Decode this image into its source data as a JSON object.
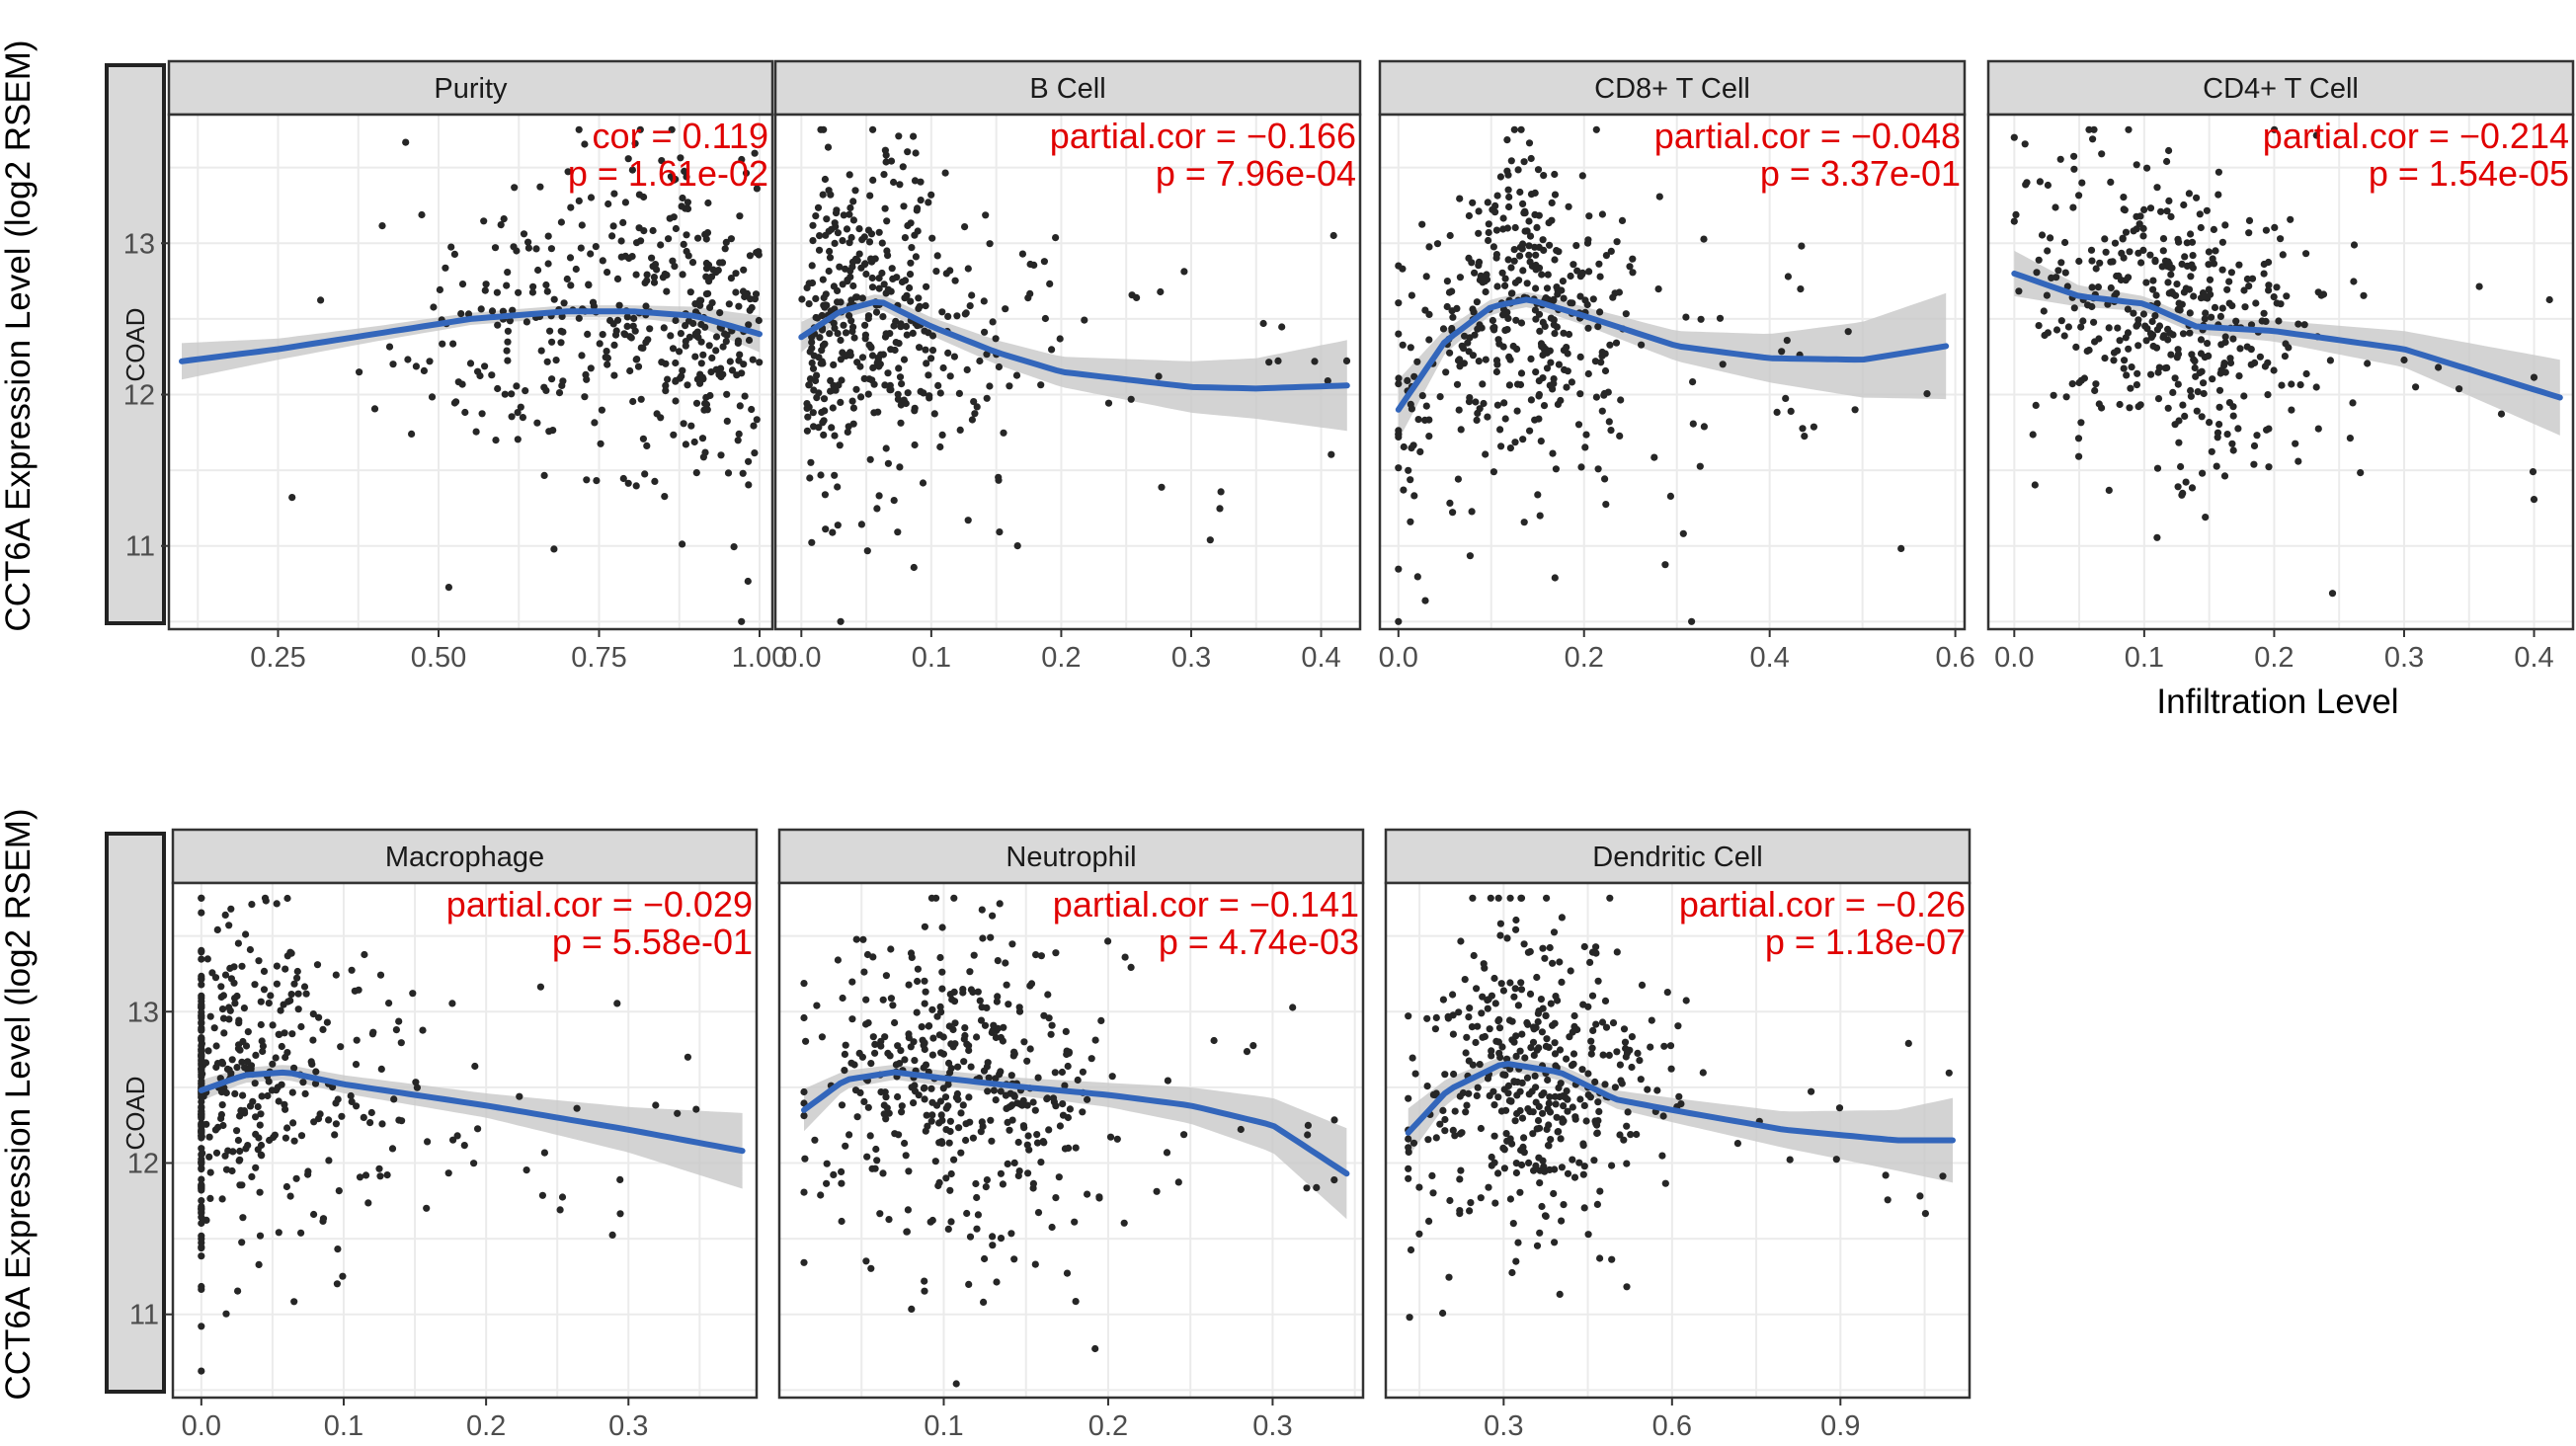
{
  "figure": {
    "y_axis_title": "CCT6A Expression Level (log2 RSEM)",
    "x_axis_title": "Infiltration Level",
    "row_label": "COAD"
  },
  "colors": {
    "points": "#262626",
    "fit_line": "#3366bb",
    "ci_band": "#c8c8c8",
    "annotation": "#e00000",
    "strip_fill": "#d9d9d9",
    "grid": "#ebebeb"
  },
  "chart_data": [
    {
      "type": "scatter",
      "title": "Purity",
      "xlabel": "Infiltration Level",
      "ylabel": "CCT6A Expression Level (log2 RSEM)",
      "xlim": [
        0.08,
        1.02
      ],
      "ylim": [
        10.45,
        13.85
      ],
      "xticks": [
        0.25,
        0.5,
        0.75,
        1.0
      ],
      "xtick_labels": [
        "0.25",
        "0.50",
        "0.75",
        "1.00"
      ],
      "yticks": [
        11,
        12,
        13
      ],
      "ytick_labels": [
        "11",
        "12",
        "13"
      ],
      "annotation": [
        "cor = 0.119",
        "p = 1.61e-02"
      ],
      "fit": {
        "x": [
          0.1,
          0.25,
          0.4,
          0.55,
          0.7,
          0.8,
          0.9,
          1.0
        ],
        "y": [
          12.22,
          12.3,
          12.4,
          12.5,
          12.55,
          12.55,
          12.52,
          12.4
        ]
      },
      "ci_halfwidth": [
        0.12,
        0.07,
        0.05,
        0.04,
        0.04,
        0.04,
        0.06,
        0.12
      ],
      "points_gen": {
        "n": 430,
        "seed": 11,
        "x_dist": "beta_right",
        "x_range": [
          0.08,
          1.0
        ],
        "y_sd": 0.52
      }
    },
    {
      "type": "scatter",
      "title": "B Cell",
      "xlabel": "Infiltration Level",
      "ylabel": "CCT6A Expression Level (log2 RSEM)",
      "xlim": [
        -0.02,
        0.43
      ],
      "ylim": [
        10.45,
        13.85
      ],
      "xticks": [
        0.0,
        0.1,
        0.2,
        0.3,
        0.4
      ],
      "xtick_labels": [
        "0.0",
        "0.1",
        "0.2",
        "0.3",
        "0.4"
      ],
      "yticks": [
        11,
        12,
        13
      ],
      "ytick_labels": [
        "11",
        "12",
        "13"
      ],
      "annotation": [
        "partial.cor = −0.166",
        "p = 7.96e-04"
      ],
      "fit": {
        "x": [
          0.0,
          0.03,
          0.06,
          0.1,
          0.15,
          0.2,
          0.3,
          0.35,
          0.42
        ],
        "y": [
          12.38,
          12.55,
          12.62,
          12.45,
          12.28,
          12.15,
          12.05,
          12.04,
          12.06
        ]
      },
      "ci_halfwidth": [
        0.1,
        0.05,
        0.05,
        0.06,
        0.08,
        0.1,
        0.17,
        0.2,
        0.3
      ],
      "points_gen": {
        "n": 430,
        "seed": 22,
        "x_dist": "skew_left",
        "x_range": [
          0.0,
          0.42
        ],
        "y_sd": 0.5
      }
    },
    {
      "type": "scatter",
      "title": "CD8+ T Cell",
      "xlabel": "Infiltration Level",
      "ylabel": "CCT6A Expression Level (log2 RSEM)",
      "xlim": [
        -0.02,
        0.61
      ],
      "ylim": [
        10.45,
        13.85
      ],
      "xticks": [
        0.0,
        0.2,
        0.4,
        0.6
      ],
      "xtick_labels": [
        "0.0",
        "0.2",
        "0.4",
        "0.6"
      ],
      "yticks": [
        11,
        12,
        13
      ],
      "ytick_labels": [
        "11",
        "12",
        "13"
      ],
      "annotation": [
        "partial.cor = −0.048",
        "p = 3.37e-01"
      ],
      "fit": {
        "x": [
          0.0,
          0.05,
          0.1,
          0.14,
          0.2,
          0.3,
          0.4,
          0.5,
          0.59
        ],
        "y": [
          11.9,
          12.35,
          12.58,
          12.63,
          12.52,
          12.32,
          12.24,
          12.23,
          12.32
        ]
      },
      "ci_halfwidth": [
        0.2,
        0.08,
        0.05,
        0.05,
        0.06,
        0.1,
        0.16,
        0.25,
        0.35
      ],
      "points_gen": {
        "n": 430,
        "seed": 33,
        "x_dist": "hump",
        "x_range": [
          0.0,
          0.59
        ],
        "y_sd": 0.5
      }
    },
    {
      "type": "scatter",
      "title": "CD4+ T Cell",
      "xlabel": "Infiltration Level",
      "ylabel": "CCT6A Expression Level (log2 RSEM)",
      "xlim": [
        -0.02,
        0.43
      ],
      "ylim": [
        10.45,
        13.85
      ],
      "xticks": [
        0.0,
        0.1,
        0.2,
        0.3,
        0.4
      ],
      "xtick_labels": [
        "0.0",
        "0.1",
        "0.2",
        "0.3",
        "0.4"
      ],
      "yticks": [
        11,
        12,
        13
      ],
      "ytick_labels": [
        "11",
        "12",
        "13"
      ],
      "annotation": [
        "partial.cor = −0.214",
        "p = 1.54e-05"
      ],
      "fit": {
        "x": [
          0.0,
          0.05,
          0.1,
          0.14,
          0.2,
          0.3,
          0.42
        ],
        "y": [
          12.8,
          12.65,
          12.6,
          12.45,
          12.42,
          12.3,
          11.98
        ]
      },
      "ci_halfwidth": [
        0.15,
        0.07,
        0.05,
        0.05,
        0.07,
        0.12,
        0.25
      ],
      "points_gen": {
        "n": 430,
        "seed": 44,
        "x_dist": "skew_mid",
        "x_range": [
          0.0,
          0.42
        ],
        "y_sd": 0.5
      }
    },
    {
      "type": "scatter",
      "title": "Macrophage",
      "xlabel": "Infiltration Level",
      "ylabel": "CCT6A Expression Level (log2 RSEM)",
      "xlim": [
        -0.02,
        0.39
      ],
      "ylim": [
        10.45,
        13.85
      ],
      "xticks": [
        0.0,
        0.1,
        0.2,
        0.3
      ],
      "xtick_labels": [
        "0.0",
        "0.1",
        "0.2",
        "0.3"
      ],
      "yticks": [
        11,
        12,
        13
      ],
      "ytick_labels": [
        "11",
        "12",
        "13"
      ],
      "annotation": [
        "partial.cor = −0.029",
        "p = 5.58e-01"
      ],
      "fit": {
        "x": [
          0.0,
          0.03,
          0.06,
          0.1,
          0.2,
          0.3,
          0.38
        ],
        "y": [
          12.48,
          12.58,
          12.6,
          12.52,
          12.38,
          12.22,
          12.08
        ]
      },
      "ci_halfwidth": [
        0.07,
        0.05,
        0.05,
        0.06,
        0.08,
        0.15,
        0.25
      ],
      "points_gen": {
        "n": 430,
        "seed": 55,
        "x_dist": "zero_heavy",
        "x_range": [
          0.0,
          0.37
        ],
        "y_sd": 0.5
      }
    },
    {
      "type": "scatter",
      "title": "Neutrophil",
      "xlabel": "Infiltration Level",
      "ylabel": "CCT6A Expression Level (log2 RSEM)",
      "xlim": [
        0.0,
        0.355
      ],
      "ylim": [
        10.45,
        13.85
      ],
      "xticks": [
        0.1,
        0.2,
        0.3
      ],
      "xtick_labels": [
        "0.1",
        "0.2",
        "0.3"
      ],
      "yticks": [
        11,
        12,
        13
      ],
      "ytick_labels": [
        "11",
        "12",
        "13"
      ],
      "annotation": [
        "partial.cor = −0.141",
        "p = 4.74e-03"
      ],
      "fit": {
        "x": [
          0.015,
          0.04,
          0.07,
          0.1,
          0.15,
          0.2,
          0.25,
          0.3,
          0.345
        ],
        "y": [
          12.35,
          12.55,
          12.6,
          12.56,
          12.5,
          12.45,
          12.38,
          12.25,
          11.93
        ]
      },
      "ci_halfwidth": [
        0.14,
        0.06,
        0.05,
        0.05,
        0.06,
        0.08,
        0.12,
        0.18,
        0.3
      ],
      "points_gen": {
        "n": 430,
        "seed": 66,
        "x_dist": "skew_mid",
        "x_range": [
          0.015,
          0.345
        ],
        "y_sd": 0.5
      }
    },
    {
      "type": "scatter",
      "title": "Dendritic Cell",
      "xlabel": "Infiltration Level",
      "ylabel": "CCT6A Expression Level (log2 RSEM)",
      "xlim": [
        0.09,
        1.13
      ],
      "ylim": [
        10.45,
        13.85
      ],
      "xticks": [
        0.3,
        0.6,
        0.9
      ],
      "xtick_labels": [
        "0.3",
        "0.6",
        "0.9"
      ],
      "yticks": [
        11,
        12,
        13
      ],
      "ytick_labels": [
        "11",
        "12",
        "13"
      ],
      "annotation": [
        "partial.cor = −0.26",
        "p = 1.18e-07"
      ],
      "fit": {
        "x": [
          0.13,
          0.2,
          0.3,
          0.4,
          0.5,
          0.6,
          0.8,
          1.0,
          1.1
        ],
        "y": [
          12.2,
          12.48,
          12.66,
          12.6,
          12.42,
          12.35,
          12.22,
          12.15,
          12.15
        ]
      },
      "ci_halfwidth": [
        0.16,
        0.08,
        0.05,
        0.05,
        0.06,
        0.08,
        0.12,
        0.2,
        0.28
      ],
      "points_gen": {
        "n": 430,
        "seed": 77,
        "x_dist": "hump",
        "x_range": [
          0.13,
          1.1
        ],
        "y_sd": 0.5
      }
    }
  ]
}
